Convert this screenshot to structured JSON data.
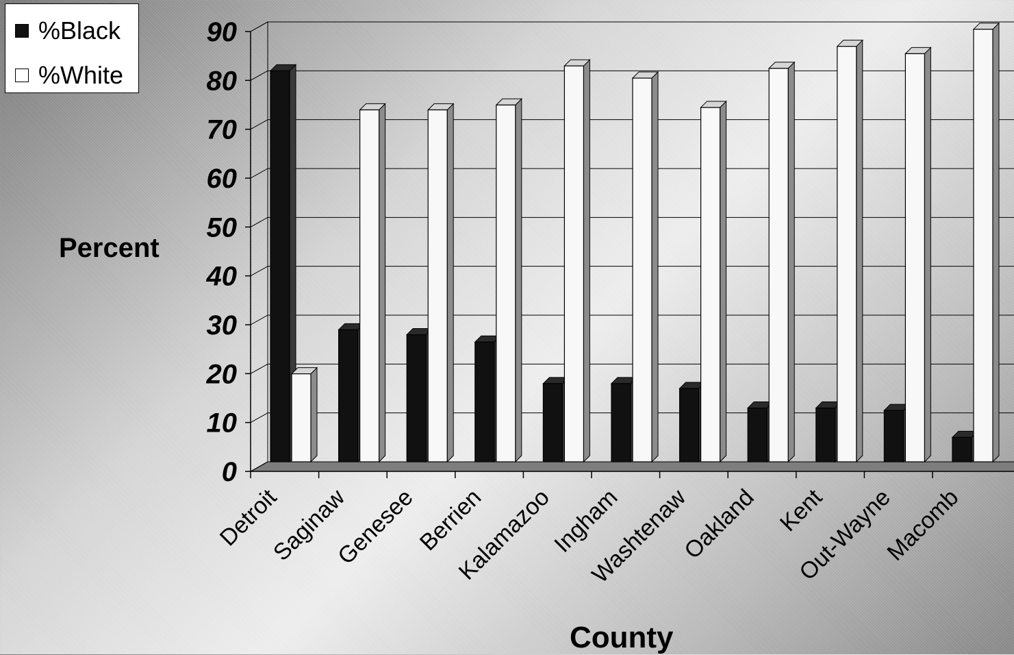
{
  "chart_data": {
    "type": "bar",
    "title": "",
    "xlabel": "County",
    "ylabel": "Percent",
    "ylim": [
      0,
      90
    ],
    "yticks": [
      0,
      10,
      20,
      30,
      40,
      50,
      60,
      70,
      80,
      90
    ],
    "grid": true,
    "legend_position": "top-left",
    "categories": [
      "Detroit",
      "Saginaw",
      "Genesee",
      "Berrien",
      "Kalamazoo",
      "Ingham",
      "Washtenaw",
      "Oakland",
      "Kent",
      "Out-Wayne",
      "Macomb"
    ],
    "series": [
      {
        "name": "%Black",
        "color": "#111111",
        "values": [
          80,
          27,
          26,
          24.5,
          16,
          16,
          15,
          11,
          11,
          10.5,
          5
        ]
      },
      {
        "name": "%White",
        "color": "#f5f5f5",
        "values": [
          18,
          72,
          72,
          73,
          81,
          78.5,
          72.5,
          80.5,
          85,
          83.5,
          88.5
        ]
      }
    ]
  }
}
